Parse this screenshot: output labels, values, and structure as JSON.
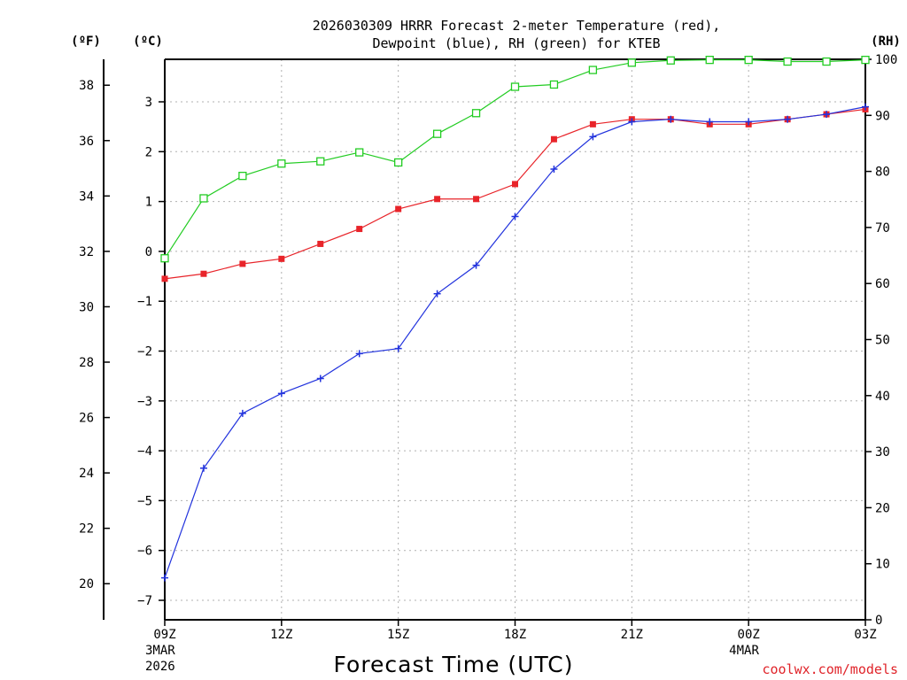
{
  "chart_data": {
    "type": "line",
    "title_line1": "2026030309 HRRR Forecast 2-meter Temperature (red),",
    "title_line2": "Dewpoint (blue), RH (green) for KTEB",
    "xlabel": "Forecast Time (UTC)",
    "credit": "coolwx.com/models",
    "y_f_unit": "(ºF)",
    "y_c_unit": "(ºC)",
    "y_rh_unit": "(RH)",
    "x_ticks": [
      {
        "label": "09Z",
        "sub1": "3MAR",
        "sub2": "2026",
        "hour": 0
      },
      {
        "label": "12Z",
        "sub1": "",
        "sub2": "",
        "hour": 3
      },
      {
        "label": "15Z",
        "sub1": "",
        "sub2": "",
        "hour": 6
      },
      {
        "label": "18Z",
        "sub1": "",
        "sub2": "",
        "hour": 9
      },
      {
        "label": "21Z",
        "sub1": "",
        "sub2": "",
        "hour": 12
      },
      {
        "label": "00Z",
        "sub1": "4MAR",
        "sub2": "",
        "hour": 15
      },
      {
        "label": "03Z",
        "sub1": "",
        "sub2": "",
        "hour": 18
      }
    ],
    "x": [
      "09Z",
      "10Z",
      "11Z",
      "12Z",
      "13Z",
      "14Z",
      "15Z",
      "16Z",
      "17Z",
      "18Z",
      "19Z",
      "20Z",
      "21Z",
      "22Z",
      "23Z",
      "00Z",
      "01Z",
      "02Z",
      "03Z"
    ],
    "xlim": [
      0,
      18
    ],
    "celsius_ticks": [
      "3",
      "2",
      "1",
      "0",
      "−1",
      "−2",
      "−3",
      "−4",
      "−5",
      "−6",
      "−7"
    ],
    "fahrenheit_ticks": [
      "38",
      "36",
      "34",
      "32",
      "30",
      "28",
      "26",
      "24",
      "22",
      "20"
    ],
    "rh_ticks": [
      "100",
      "90",
      "80",
      "70",
      "60",
      "50",
      "40",
      "30",
      "20",
      "10",
      "0"
    ],
    "ylim_celsius": [
      -7.4,
      3.8
    ],
    "ylim_rh": [
      0,
      100
    ],
    "series": [
      {
        "color": "#e8242a",
        "marker": "square-filled",
        "values": [
          -0.55,
          -0.45,
          -0.25,
          -0.15,
          0.15,
          0.45,
          0.85,
          1.05,
          1.05,
          1.35,
          2.25,
          2.55,
          2.65,
          2.65,
          2.55,
          2.55,
          2.65,
          2.75,
          2.85
        ]
      },
      {
        "color": "#2233dd",
        "marker": "plus",
        "values": [
          -6.55,
          -4.35,
          -3.25,
          -2.85,
          -2.55,
          -2.05,
          -1.95,
          -0.85,
          -0.28,
          0.7,
          1.65,
          2.3,
          2.6,
          2.65,
          2.6,
          2.6,
          2.65,
          2.75,
          2.9
        ]
      },
      {
        "color": "#22cc22",
        "marker": "square-open",
        "values": [
          64.5,
          75.2,
          79.2,
          81.4,
          81.8,
          83.4,
          81.6,
          86.7,
          90.4,
          95.1,
          95.5,
          98.1,
          99.4,
          99.8,
          99.9,
          99.9,
          99.6,
          99.6,
          99.9
        ]
      }
    ],
    "grid": true
  }
}
